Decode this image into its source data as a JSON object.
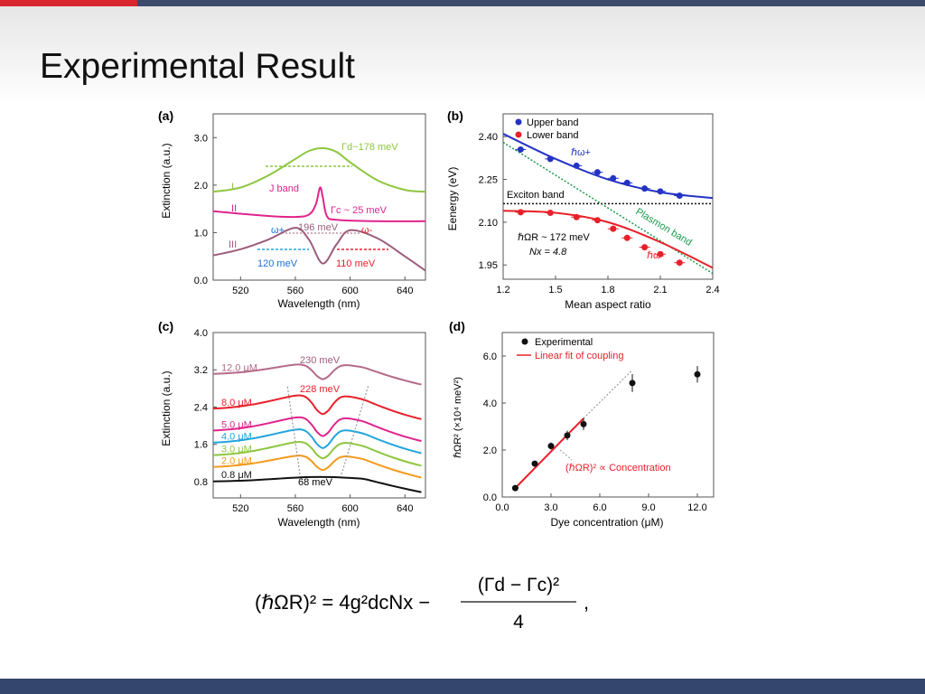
{
  "slide": {
    "title": "Experimental Result"
  },
  "colors": {
    "topbar": "#3b4a6b",
    "accent": "#d9262c",
    "bottombar": "#34466e"
  },
  "panel_a": {
    "label": "(a)",
    "xlabel": "Wavelength (nm)",
    "ylabel": "Extinction (a.u.)",
    "xticks": [
      "520",
      "560",
      "600",
      "640"
    ],
    "yticks": [
      "0.0",
      "1.0",
      "2.0",
      "3.0"
    ],
    "curve_labels": [
      "I",
      "II",
      "III"
    ],
    "annotations": {
      "gamma_d": "Γd~178 meV",
      "jband": "J band",
      "gamma_c": "Γc ~ 25 meV",
      "split": "196 meV",
      "w_plus": "ω+",
      "w_minus": "ω-",
      "left_width": "120 meV",
      "right_width": "110 meV"
    }
  },
  "panel_b": {
    "label": "(b)",
    "xlabel": "Mean aspect ratio",
    "ylabel": "Eenergy (eV)",
    "xticks": [
      "1.2",
      "1.5",
      "1.8",
      "2.1",
      "2.4"
    ],
    "yticks": [
      "1.95",
      "2.10",
      "2.25",
      "2.40"
    ],
    "legend": [
      "Upper band",
      "Lower band"
    ],
    "annotations": {
      "upper": "ℏω+",
      "lower": "ℏω-",
      "exciton": "Exciton band",
      "plasmon": "Plasmon band",
      "rabi": "ℏΩR ~ 172 meV",
      "nx": "Nx = 4.8"
    }
  },
  "panel_c": {
    "label": "(c)",
    "xlabel": "Wavelength (nm)",
    "ylabel": "Extinction (a.u.)",
    "xticks": [
      "520",
      "560",
      "600",
      "640"
    ],
    "yticks": [
      "0.8",
      "1.6",
      "2.4",
      "3.2",
      "4.0"
    ],
    "annotations": {
      "top_split": "230 meV",
      "mid_split": "228 meV",
      "bottom_split": "68 meV"
    }
  },
  "panel_d": {
    "label": "(d)",
    "xlabel": "Dye concentration (μM)",
    "ylabel": "ℏΩR² (×10⁴ meV²)",
    "xticks": [
      "0.0",
      "3.0",
      "6.0",
      "9.0",
      "12.0"
    ],
    "yticks": [
      "0.0",
      "2.0",
      "4.0",
      "6.0"
    ],
    "legend": [
      "Experimental",
      "Linear fit of coupling"
    ],
    "annotation": "(ℏΩR)² ∝ Concentration"
  },
  "equation": {
    "lhs": "(ℏΩR)² = 4g²dcNx −",
    "numerator": "(Γd − Γc)²",
    "denominator": "4"
  },
  "chart_data": [
    {
      "type": "line",
      "title": "(a)",
      "xlabel": "Wavelength (nm)",
      "ylabel": "Extinction (a.u.)",
      "xlim": [
        500,
        655
      ],
      "ylim": [
        0,
        3.5
      ],
      "series": [
        {
          "name": "I",
          "color": "#8dc63f",
          "x": [
            500,
            520,
            540,
            560,
            570,
            580,
            590,
            600,
            620,
            640,
            655
          ],
          "y": [
            1.86,
            1.95,
            2.2,
            2.55,
            2.72,
            2.78,
            2.7,
            2.48,
            2.1,
            1.9,
            1.86
          ]
        },
        {
          "name": "II",
          "color": "#e0248c",
          "x": [
            500,
            540,
            560,
            570,
            575,
            578,
            580,
            583,
            590,
            620,
            655
          ],
          "y": [
            1.45,
            1.35,
            1.33,
            1.38,
            1.6,
            1.95,
            1.75,
            1.35,
            1.27,
            1.24,
            1.24
          ]
        },
        {
          "name": "III",
          "color": "#9b5c7b",
          "x": [
            500,
            520,
            540,
            560,
            570,
            580,
            590,
            600,
            620,
            640,
            655
          ],
          "y": [
            0.52,
            0.65,
            0.85,
            1.1,
            0.85,
            0.35,
            0.75,
            1.05,
            0.88,
            0.5,
            0.2
          ]
        }
      ]
    },
    {
      "type": "scatter",
      "title": "(b)",
      "xlabel": "Mean aspect ratio",
      "ylabel": "Eenergy (eV)",
      "xlim": [
        1.2,
        2.4
      ],
      "ylim": [
        1.9,
        2.48
      ],
      "series": [
        {
          "name": "Upper band",
          "color": "#2433c4",
          "x": [
            1.3,
            1.47,
            1.62,
            1.74,
            1.83,
            1.91,
            2.01,
            2.1,
            2.21
          ],
          "y": [
            2.355,
            2.322,
            2.298,
            2.275,
            2.254,
            2.238,
            2.218,
            2.208,
            2.193
          ]
        },
        {
          "name": "Lower band",
          "color": "#e8202a",
          "x": [
            1.3,
            1.47,
            1.62,
            1.74,
            1.83,
            1.91,
            2.01,
            2.1,
            2.21
          ],
          "y": [
            2.135,
            2.133,
            2.118,
            2.107,
            2.077,
            2.045,
            2.012,
            1.988,
            1.958
          ]
        }
      ],
      "fits": {
        "upper": {
          "x": [
            1.2,
            1.5,
            1.8,
            2.1,
            2.4
          ],
          "y": [
            2.41,
            2.322,
            2.25,
            2.205,
            2.185
          ]
        },
        "lower": {
          "x": [
            1.2,
            1.5,
            1.8,
            2.1,
            2.4
          ],
          "y": [
            2.14,
            2.133,
            2.1,
            2.03,
            1.94
          ]
        },
        "plasmon": {
          "x": [
            1.2,
            2.4
          ],
          "y": [
            2.38,
            1.92
          ]
        },
        "exciton": {
          "y": 2.165
        }
      }
    },
    {
      "type": "line",
      "title": "(c)",
      "xlabel": "Wavelength (nm)",
      "ylabel": "Extinction (a.u.)",
      "xlim": [
        500,
        655
      ],
      "ylim": [
        0.45,
        4.0
      ],
      "series": [
        {
          "name": "0.8 μM",
          "color": "#111111",
          "offset": 0.8,
          "amp": 0.1,
          "dip": 0.0
        },
        {
          "name": "2.0 μM",
          "color": "#f39a1b",
          "offset": 1.1,
          "amp": 0.3,
          "dip": 0.35
        },
        {
          "name": "3.0 μM",
          "color": "#8dc63f",
          "offset": 1.35,
          "amp": 0.35,
          "dip": 0.4
        },
        {
          "name": "4.0 μM",
          "color": "#22a5dd",
          "offset": 1.62,
          "amp": 0.35,
          "dip": 0.45
        },
        {
          "name": "5.0 μM",
          "color": "#e0248c",
          "offset": 1.88,
          "amp": 0.35,
          "dip": 0.45
        },
        {
          "name": "8.0 μM",
          "color": "#e8202a",
          "offset": 2.35,
          "amp": 0.35,
          "dip": 0.45
        },
        {
          "name": "12.0 μM",
          "color": "#b56a8a",
          "offset": 3.1,
          "amp": 0.25,
          "dip": 0.35
        }
      ]
    },
    {
      "type": "scatter",
      "title": "(d)",
      "xlabel": "Dye concentration (μM)",
      "ylabel": "ℏΩR² (×10⁴ meV²)",
      "xlim": [
        0,
        13
      ],
      "ylim": [
        0,
        7
      ],
      "series": [
        {
          "name": "Experimental",
          "color": "#111111",
          "x": [
            0.8,
            2.0,
            3.0,
            4.0,
            5.0,
            8.0,
            12.0
          ],
          "y": [
            0.38,
            1.42,
            2.17,
            2.62,
            3.1,
            4.85,
            5.22
          ],
          "err": [
            0.08,
            0.12,
            0.15,
            0.2,
            0.25,
            0.38,
            0.35
          ]
        }
      ],
      "fit": {
        "name": "Linear fit of coupling",
        "x": [
          0.8,
          5.0
        ],
        "y": [
          0.38,
          3.35
        ]
      },
      "extrapolation": {
        "x": [
          5.0,
          8.0
        ],
        "y": [
          3.35,
          5.4
        ]
      }
    }
  ]
}
